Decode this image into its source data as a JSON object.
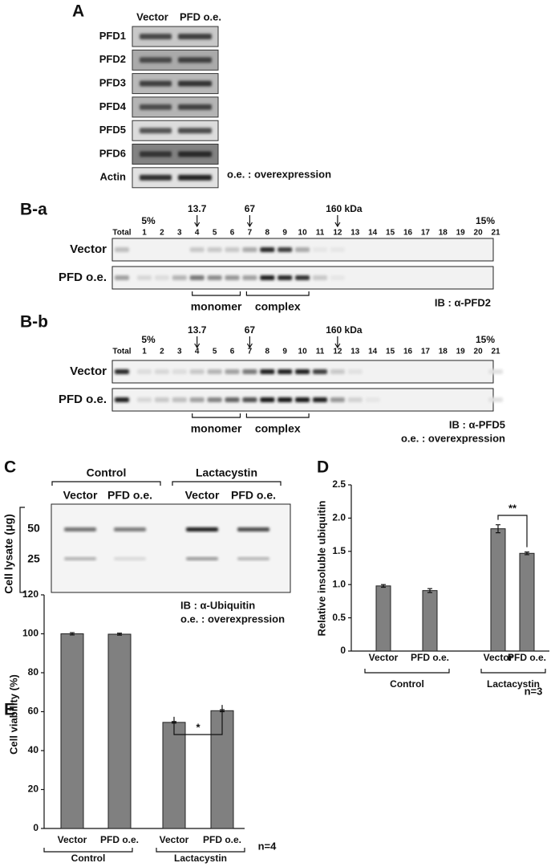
{
  "panel_a": {
    "label": "A",
    "columns": [
      "Vector",
      "PFD o.e."
    ],
    "rows": [
      "PFD1",
      "PFD2",
      "PFD3",
      "PFD4",
      "PFD5",
      "PFD6",
      "Actin"
    ],
    "note": "o.e. : overexpression"
  },
  "panel_ba": {
    "label": "B-a",
    "total": "Total",
    "start": "5%",
    "end": "15%",
    "fractions": [
      "1",
      "2",
      "3",
      "4",
      "5",
      "6",
      "7",
      "8",
      "9",
      "10",
      "11",
      "12",
      "13",
      "14",
      "15",
      "16",
      "17",
      "18",
      "19",
      "20",
      "21"
    ],
    "markers": [
      "13.7",
      "67",
      "160 kDa"
    ],
    "rows": [
      "Vector",
      "PFD o.e."
    ],
    "groups": [
      "monomer",
      "complex"
    ],
    "ib": "IB : α-PFD2"
  },
  "panel_bb": {
    "label": "B-b",
    "total": "Total",
    "start": "5%",
    "end": "15%",
    "fractions": [
      "1",
      "2",
      "3",
      "4",
      "5",
      "6",
      "7",
      "8",
      "9",
      "10",
      "11",
      "12",
      "13",
      "14",
      "15",
      "16",
      "17",
      "18",
      "19",
      "20",
      "21"
    ],
    "markers": [
      "13.7",
      "67",
      "160 kDa"
    ],
    "rows": [
      "Vector",
      "PFD o.e."
    ],
    "groups": [
      "monomer",
      "complex"
    ],
    "ib": "IB : α-PFD5",
    "note": "o.e. : overexpression"
  },
  "panel_c": {
    "label": "C",
    "groups": [
      "Control",
      "Lactacystin"
    ],
    "columns": [
      "Vector",
      "PFD o.e.",
      "Vector",
      "PFD o.e."
    ],
    "ylabel": "Cell lysate (μg)",
    "rows": [
      "50",
      "25"
    ],
    "ib": "IB : α-Ubiquitin",
    "note": "o.e. : overexpression"
  },
  "chart_data": [
    {
      "type": "bar",
      "label": "D",
      "ylabel": "Relative insoluble ubiquitin",
      "categories": [
        "Vector",
        "PFD o.e.",
        "Vector",
        "PFD o.e."
      ],
      "groups": [
        "Control",
        "Lactacystin"
      ],
      "values": [
        0.98,
        0.91,
        1.84,
        1.47
      ],
      "errors": [
        0.02,
        0.03,
        0.06,
        0.02
      ],
      "color": "#808080",
      "ylim": [
        0,
        2.5
      ],
      "yticks": [
        0,
        0.5,
        {
          "value": 1,
          "label": "1.0"
        },
        1.5,
        {
          "value": 2,
          "label": "2.0"
        },
        2.5
      ],
      "annotation": "**",
      "note": "n=3"
    },
    {
      "type": "bar",
      "label": "E",
      "ylabel": "Cell viability (%)",
      "categories": [
        "Vector",
        "PFD o.e.",
        "Vector",
        "PFD o.e."
      ],
      "groups": [
        "Control",
        "Lactacystin"
      ],
      "values": [
        100,
        99.8,
        54.5,
        60.5
      ],
      "errors": [
        0.6,
        0.5,
        0.4,
        0.5
      ],
      "color": "#808080",
      "ylim": [
        0,
        120
      ],
      "yticks": [
        0,
        20,
        40,
        60,
        80,
        100,
        120
      ],
      "annotation": "*",
      "note": "n=4"
    }
  ]
}
